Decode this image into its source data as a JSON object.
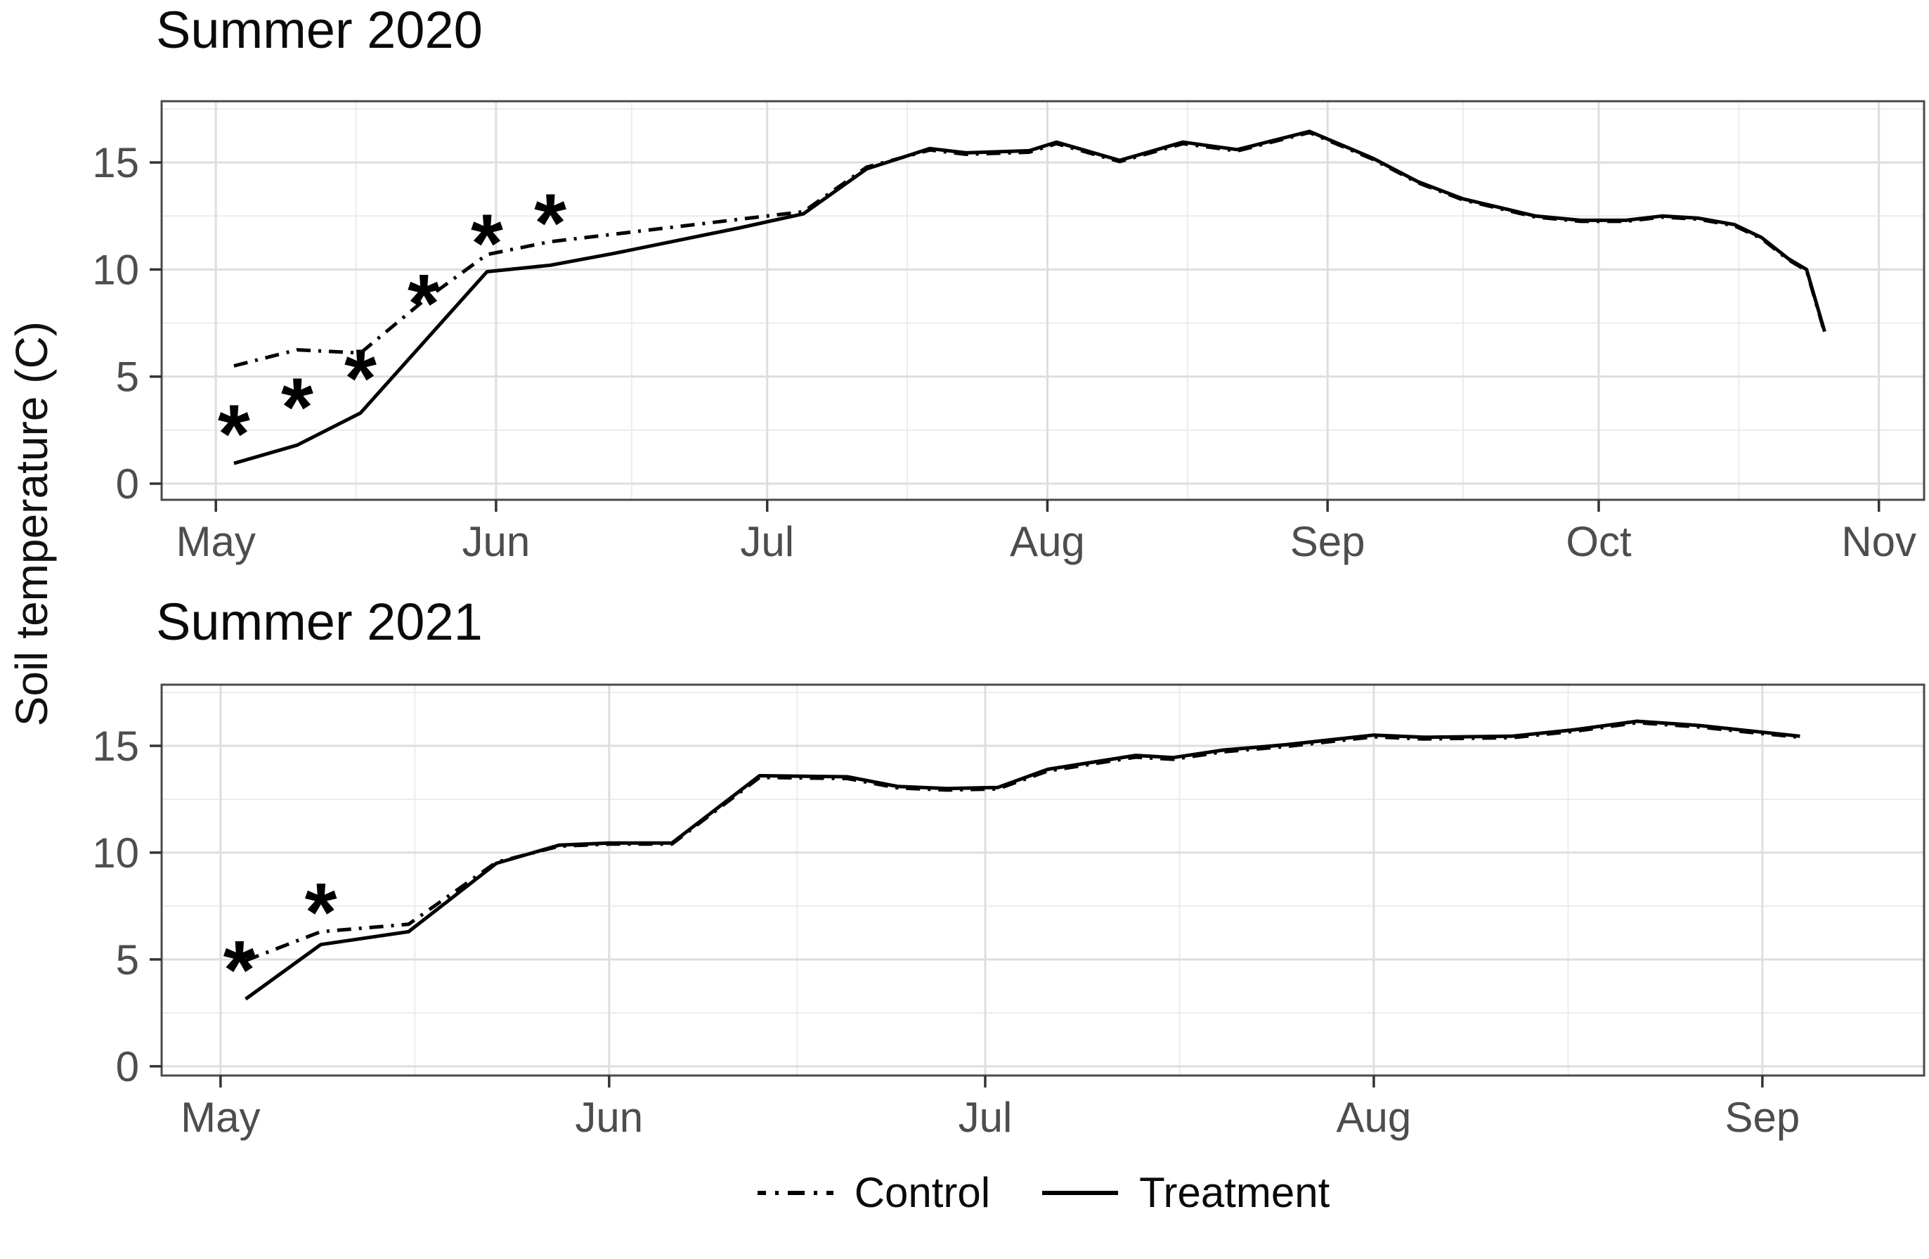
{
  "figure": {
    "y_axis_label": "Soil temperature (C)",
    "annotation_symbol": "*",
    "legend": {
      "items": [
        {
          "label": "Control",
          "linetype": "dashdot"
        },
        {
          "label": "Treatment",
          "linetype": "solid"
        }
      ]
    },
    "colors": {
      "series_line": "#000000",
      "grid_major": "#dedede",
      "grid_minor": "#ececec",
      "panel_border": "#4a4a4a",
      "axis_tick": "#333333",
      "tick_label": "#4d4d4d",
      "title_text": "#0a0a0a",
      "background": "#ffffff"
    }
  },
  "chart_data": [
    {
      "type": "line",
      "title": "Summer 2020",
      "ylabel": "Soil temperature (C)",
      "xlabel": "",
      "x_unit": "days since May 1",
      "xlim": [
        -6,
        189
      ],
      "ylim": [
        -0.755,
        17.86
      ],
      "y_ticks": [
        0,
        5,
        10,
        15
      ],
      "x_ticks": [
        {
          "day": 0,
          "label": "May"
        },
        {
          "day": 31,
          "label": "Jun"
        },
        {
          "day": 61,
          "label": "Jul"
        },
        {
          "day": 92,
          "label": "Aug"
        },
        {
          "day": 123,
          "label": "Sep"
        },
        {
          "day": 153,
          "label": "Oct"
        },
        {
          "day": 184,
          "label": "Nov"
        }
      ],
      "grid": true,
      "legend_position": "bottom-shared",
      "series": [
        {
          "name": "Control",
          "linetype": "dashdot",
          "x": [
            2,
            9,
            16,
            23,
            30,
            37,
            44,
            51,
            58,
            65,
            72,
            79,
            83,
            90,
            93,
            100,
            107,
            113,
            121,
            128,
            133,
            138,
            142,
            146,
            151,
            156,
            160,
            164,
            168,
            171,
            174,
            176,
            178
          ],
          "y": [
            5.5,
            6.25,
            6.1,
            8.55,
            10.7,
            11.3,
            11.65,
            12.0,
            12.35,
            12.7,
            14.78,
            15.58,
            15.38,
            15.48,
            15.88,
            15.04,
            15.88,
            15.54,
            16.4,
            15.15,
            14.05,
            13.25,
            12.85,
            12.45,
            12.25,
            12.25,
            12.45,
            12.35,
            12.05,
            11.45,
            10.45,
            9.95,
            7.05
          ]
        },
        {
          "name": "Treatment",
          "linetype": "solid",
          "x": [
            2,
            9,
            16,
            23,
            30,
            37,
            44,
            51,
            58,
            65,
            72,
            79,
            83,
            90,
            93,
            100,
            107,
            113,
            121,
            128,
            133,
            138,
            142,
            146,
            151,
            156,
            160,
            164,
            168,
            171,
            174,
            176,
            178
          ],
          "y": [
            0.95,
            1.8,
            3.3,
            6.6,
            9.9,
            10.2,
            10.75,
            11.35,
            11.95,
            12.6,
            14.7,
            15.65,
            15.45,
            15.55,
            15.95,
            15.1,
            15.95,
            15.6,
            16.45,
            15.2,
            14.1,
            13.3,
            12.9,
            12.5,
            12.3,
            12.3,
            12.5,
            12.4,
            12.1,
            11.5,
            10.5,
            10.0,
            7.1
          ]
        }
      ],
      "annotations": [
        {
          "day": 2,
          "value": 2.9
        },
        {
          "day": 9,
          "value": 4.15
        },
        {
          "day": 16,
          "value": 5.5
        },
        {
          "day": 23,
          "value": 9.0
        },
        {
          "day": 30,
          "value": 11.8
        },
        {
          "day": 37,
          "value": 12.75
        }
      ]
    },
    {
      "type": "line",
      "title": "Summer 2021",
      "ylabel": "Soil temperature (C)",
      "xlabel": "",
      "x_unit": "days since May 1",
      "xlim": [
        -4.7,
        135.9
      ],
      "ylim": [
        -0.43,
        17.86
      ],
      "y_ticks": [
        0,
        5,
        10,
        15
      ],
      "x_ticks": [
        {
          "day": 0,
          "label": "May"
        },
        {
          "day": 31,
          "label": "Jun"
        },
        {
          "day": 61,
          "label": "Jul"
        },
        {
          "day": 92,
          "label": "Aug"
        },
        {
          "day": 123,
          "label": "Sep"
        }
      ],
      "grid": true,
      "legend_position": "bottom-shared",
      "series": [
        {
          "name": "Control",
          "linetype": "dashdot",
          "x": [
            2,
            8,
            15,
            22,
            27,
            31,
            36,
            43,
            50,
            54,
            58,
            62,
            66,
            73,
            76,
            80,
            85,
            92,
            96,
            103,
            108,
            113,
            118,
            122,
            126
          ],
          "y": [
            4.95,
            6.3,
            6.65,
            9.55,
            10.3,
            10.4,
            10.4,
            13.52,
            13.47,
            13.03,
            12.93,
            12.98,
            13.82,
            14.47,
            14.37,
            14.72,
            14.97,
            15.42,
            15.32,
            15.38,
            15.68,
            16.08,
            15.88,
            15.63,
            15.4
          ]
        },
        {
          "name": "Treatment",
          "linetype": "solid",
          "x": [
            2,
            8,
            15,
            22,
            27,
            31,
            36,
            43,
            50,
            54,
            58,
            62,
            66,
            73,
            76,
            80,
            85,
            92,
            96,
            103,
            108,
            113,
            118,
            122,
            126
          ],
          "y": [
            3.15,
            5.7,
            6.3,
            9.5,
            10.35,
            10.45,
            10.45,
            13.6,
            13.55,
            13.1,
            13.0,
            13.05,
            13.9,
            14.55,
            14.45,
            14.8,
            15.05,
            15.5,
            15.4,
            15.45,
            15.75,
            16.15,
            15.95,
            15.7,
            15.45
          ]
        }
      ],
      "annotations": [
        {
          "day": 1.5,
          "value": 5.1
        },
        {
          "day": 8,
          "value": 7.8
        }
      ]
    }
  ]
}
